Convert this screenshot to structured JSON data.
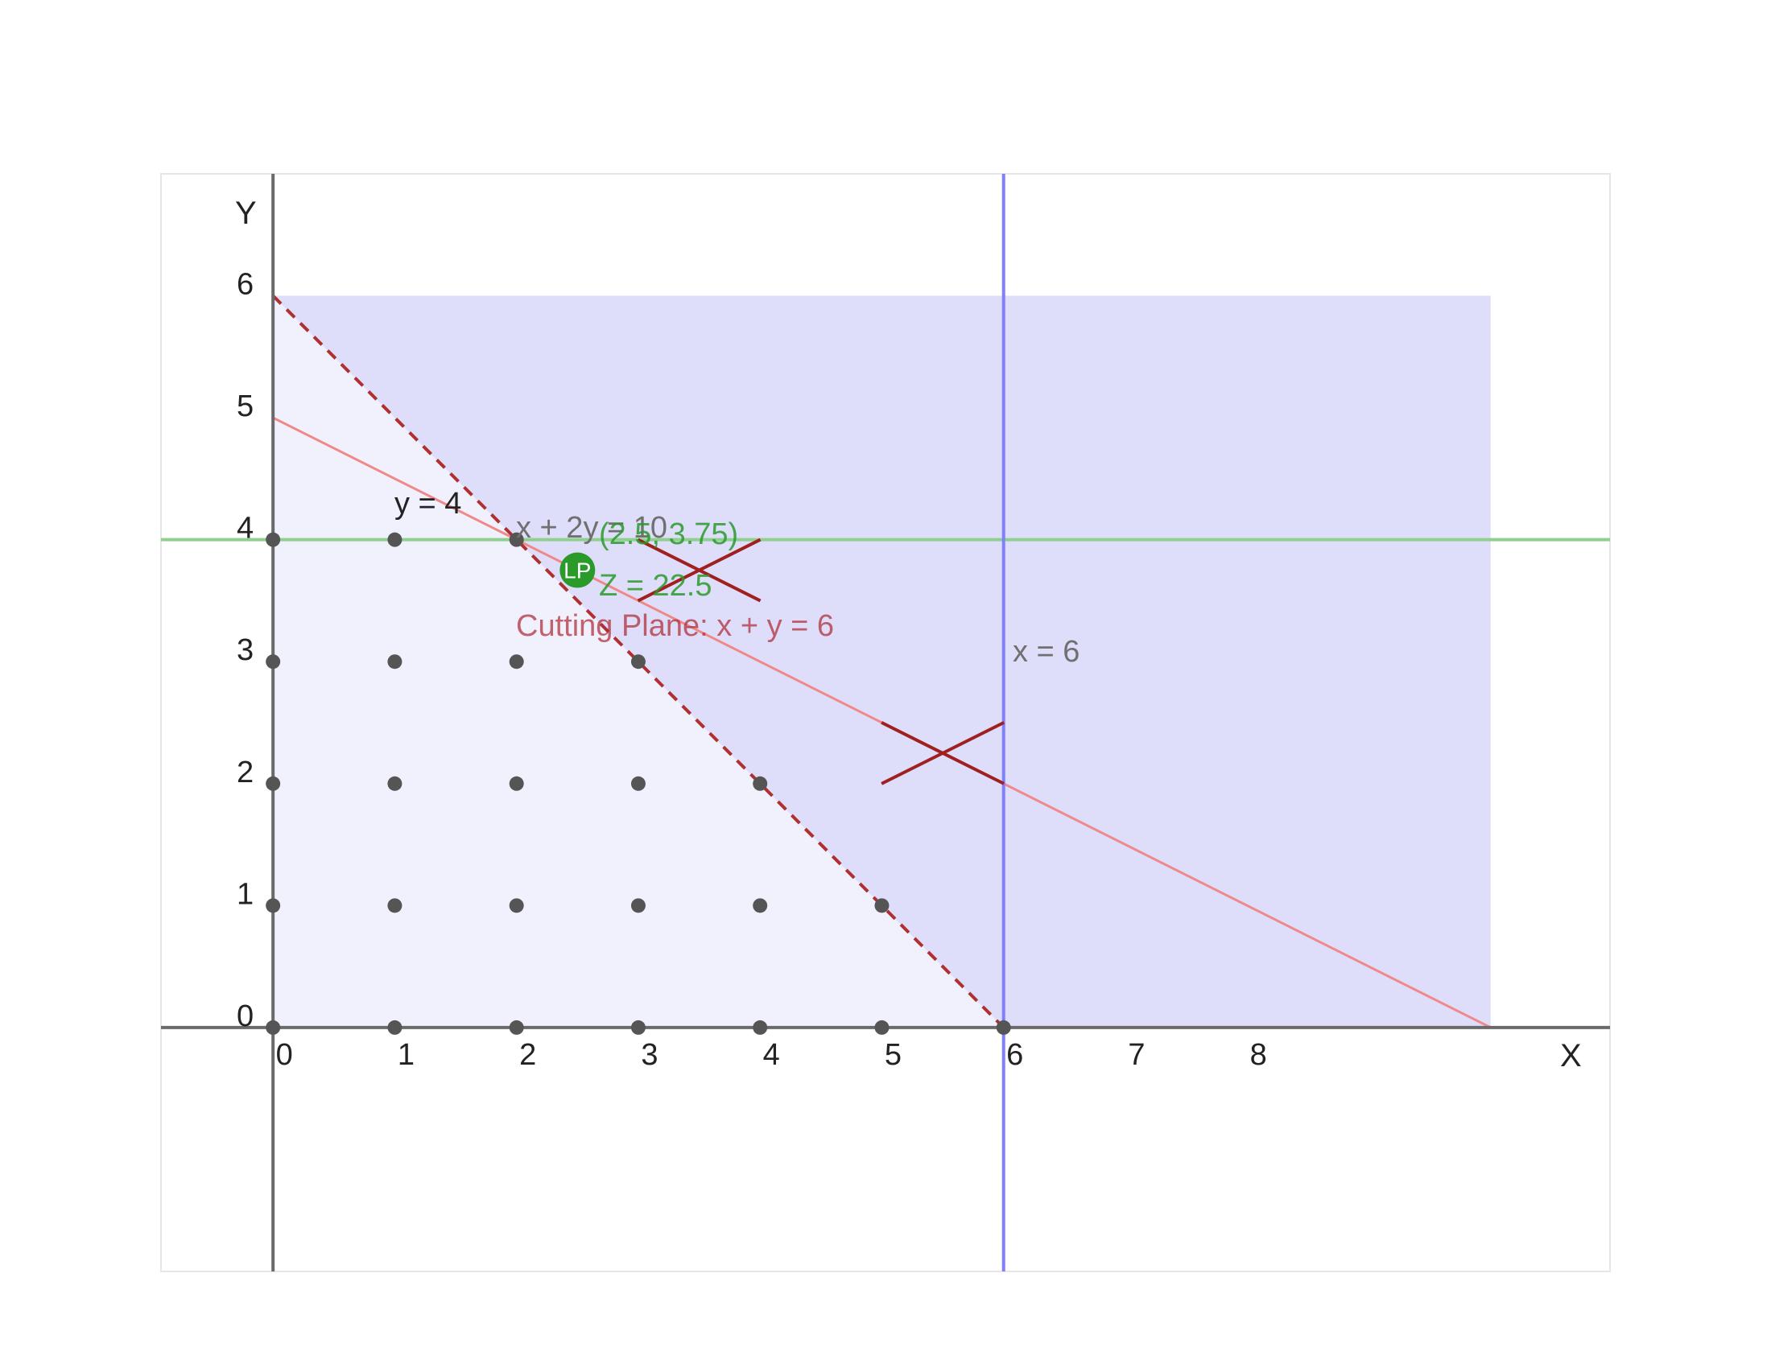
{
  "axes": {
    "x_label": "X",
    "y_label": "Y",
    "x_ticks": [
      "0",
      "1",
      "2",
      "3",
      "4",
      "5",
      "6",
      "7",
      "8"
    ],
    "y_ticks": [
      "0",
      "1",
      "2",
      "3",
      "4",
      "5",
      "6"
    ],
    "x_range": [
      -0.92,
      10.98
    ],
    "y_range": [
      -2.0,
      7.0
    ]
  },
  "constraints": {
    "y_eq_4": {
      "label": "y = 4",
      "value": 4,
      "color": "#8fd08f"
    },
    "x_eq_6": {
      "label": "x = 6",
      "value": 6,
      "color": "#8080ff"
    },
    "x_plus_2y": {
      "label": "x + 2y = 10",
      "from": [
        0,
        5
      ],
      "to": [
        10,
        0
      ],
      "color": "#f08a8a"
    },
    "cutting_plane": {
      "label": "Cutting Plane: x + y = 6",
      "from": [
        0,
        6
      ],
      "to": [
        6,
        0
      ],
      "color": "#b03030"
    }
  },
  "regions": {
    "lp_feasible_region": {
      "vertices": [
        [
          0,
          0
        ],
        [
          10,
          0
        ],
        [
          10,
          6
        ],
        [
          0,
          6
        ]
      ],
      "color": "#dedefb"
    },
    "integer_region": {
      "vertices": [
        [
          0,
          0
        ],
        [
          6,
          0
        ],
        [
          0,
          6
        ]
      ],
      "color": "#f1f1fd"
    }
  },
  "lp_optimum": {
    "badge": "LP",
    "coords_label": "(2.5, 3.75)",
    "objective_label": "Z = 22.5",
    "x": 2.5,
    "y": 3.75,
    "color": "#2a9a2a"
  },
  "cut_markers": [
    {
      "x": 3.5,
      "y": 3.75
    },
    {
      "x": 5.5,
      "y": 2.25
    }
  ],
  "integer_points": [
    [
      0,
      0
    ],
    [
      1,
      0
    ],
    [
      2,
      0
    ],
    [
      3,
      0
    ],
    [
      4,
      0
    ],
    [
      5,
      0
    ],
    [
      6,
      0
    ],
    [
      0,
      1
    ],
    [
      1,
      1
    ],
    [
      2,
      1
    ],
    [
      3,
      1
    ],
    [
      4,
      1
    ],
    [
      5,
      1
    ],
    [
      0,
      2
    ],
    [
      1,
      2
    ],
    [
      2,
      2
    ],
    [
      3,
      2
    ],
    [
      4,
      2
    ],
    [
      0,
      3
    ],
    [
      1,
      3
    ],
    [
      2,
      3
    ],
    [
      3,
      3
    ],
    [
      0,
      4
    ],
    [
      1,
      4
    ],
    [
      2,
      4
    ]
  ]
}
